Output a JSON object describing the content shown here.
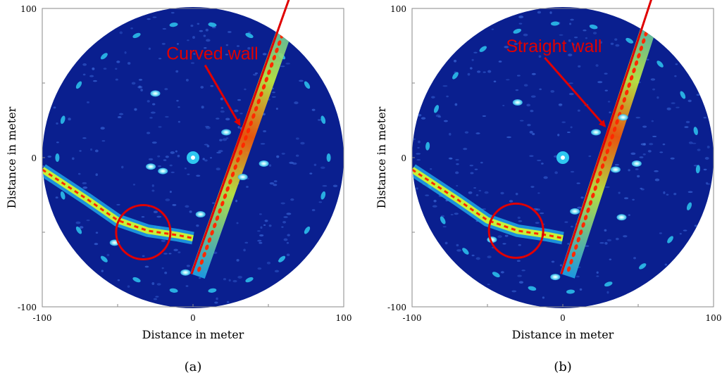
{
  "colors": {
    "radar_bg": "#0a1f8f",
    "blob": "#2ec7f0",
    "hot": "#ff2a00",
    "mid": "#c6f23a",
    "annotation": "#e00000",
    "frame": "#8a8a8a"
  },
  "chart_data": [
    {
      "type": "heatmap",
      "panel": "a",
      "caption": "(a)",
      "title": "",
      "annotation": "Curved wall",
      "xlabel": "Distance in meter",
      "ylabel": "Distance in meter",
      "xlim": [
        -100,
        100
      ],
      "ylim": [
        -100,
        100
      ],
      "xticks": [
        "-100",
        "0",
        "100"
      ],
      "yticks": [
        "100",
        "0",
        "-100"
      ],
      "radar_radius_m": 100,
      "sensor_origin": [
        0,
        0
      ],
      "wall_line": {
        "from": [
          -1,
          -78
        ],
        "to": [
          65,
          110
        ]
      },
      "arrow": {
        "from": [
          8,
          62
        ],
        "to": [
          31,
          22
        ]
      },
      "circle": {
        "center": [
          -33,
          -50
        ],
        "radius_m": 18
      },
      "blobs": [
        [
          -25,
          43
        ],
        [
          22,
          17
        ],
        [
          -20,
          -9
        ],
        [
          5,
          -38
        ],
        [
          33,
          -13
        ],
        [
          -28,
          -6
        ],
        [
          -5,
          -77
        ],
        [
          47,
          -4
        ],
        [
          -52,
          -57
        ]
      ]
    },
    {
      "type": "heatmap",
      "panel": "b",
      "caption": "(b)",
      "title": "",
      "annotation": "Straight wall",
      "xlabel": "Distance in meter",
      "ylabel": "Distance in meter",
      "xlim": [
        -100,
        100
      ],
      "ylim": [
        -100,
        100
      ],
      "xticks": [
        "-100",
        "0",
        "100"
      ],
      "yticks": [
        "100",
        "0",
        "-100"
      ],
      "radar_radius_m": 100,
      "sensor_origin": [
        0,
        0
      ],
      "wall_line": {
        "from": [
          -1,
          -78
        ],
        "to": [
          60,
          110
        ]
      },
      "arrow": {
        "from": [
          -12,
          67
        ],
        "to": [
          28,
          21
        ]
      },
      "circle": {
        "center": [
          -31,
          -49
        ],
        "radius_m": 18
      },
      "blobs": [
        [
          -30,
          37
        ],
        [
          22,
          17
        ],
        [
          40,
          27
        ],
        [
          8,
          -36
        ],
        [
          35,
          -8
        ],
        [
          39,
          -40
        ],
        [
          -5,
          -80
        ],
        [
          49,
          -4
        ],
        [
          -47,
          -55
        ]
      ]
    }
  ]
}
